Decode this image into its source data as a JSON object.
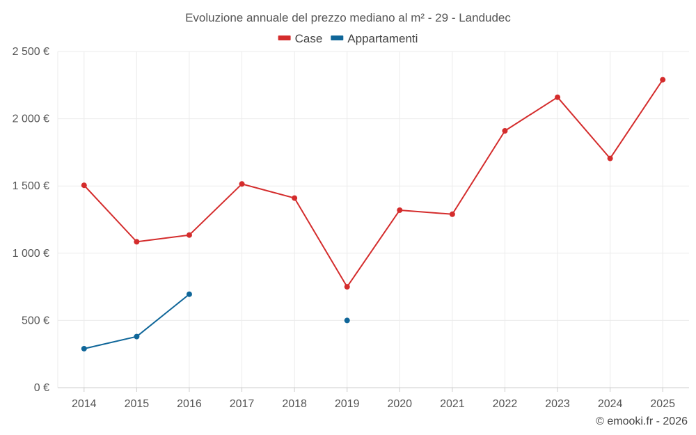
{
  "chart_data": {
    "type": "line",
    "title": "Evoluzione annuale del prezzo mediano al m² - 29 - Landudec",
    "categories": [
      "2014",
      "2015",
      "2016",
      "2017",
      "2018",
      "2019",
      "2020",
      "2021",
      "2022",
      "2023",
      "2024",
      "2025"
    ],
    "series": [
      {
        "name": "Case",
        "color": "#d42c2c",
        "values": [
          1505,
          1085,
          1135,
          1515,
          1410,
          750,
          1320,
          1290,
          1910,
          2160,
          1705,
          2290
        ]
      },
      {
        "name": "Appartamenti",
        "color": "#0f6699",
        "values": [
          290,
          380,
          695,
          null,
          null,
          500,
          null,
          null,
          null,
          null,
          null,
          null
        ]
      }
    ],
    "ylim": [
      0,
      2500
    ],
    "yticks": [
      0,
      500,
      1000,
      1500,
      2000,
      2500
    ],
    "ytick_labels": [
      "0 €",
      "500 €",
      "1 000 €",
      "1 500 €",
      "2 000 €",
      "2 500 €"
    ],
    "xlabel": "",
    "ylabel": "",
    "grid": true,
    "legend_position": "top"
  },
  "credit": "© emooki.fr - 2026"
}
